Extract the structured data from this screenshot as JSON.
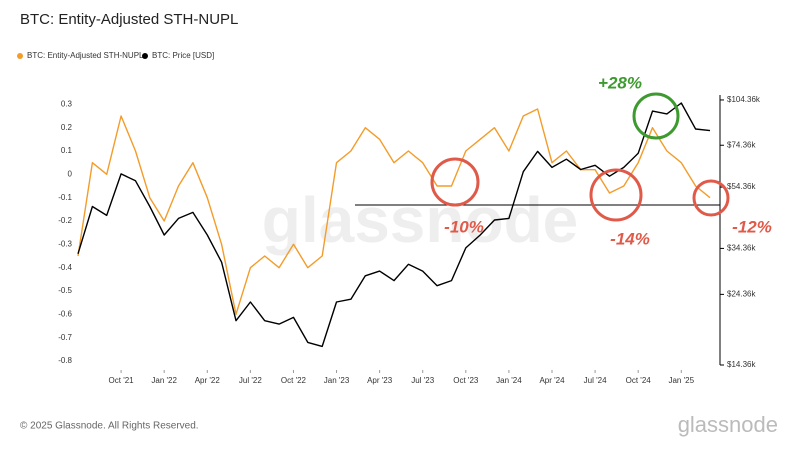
{
  "chart_data": {
    "type": "line",
    "title": "BTC: Entity-Adjusted STH-NUPL",
    "watermark": "glassnode",
    "x": [
      "2021-07",
      "2021-08",
      "2021-09",
      "2021-10",
      "2021-11",
      "2021-12",
      "2022-01",
      "2022-02",
      "2022-03",
      "2022-04",
      "2022-05",
      "2022-06",
      "2022-07",
      "2022-08",
      "2022-09",
      "2022-10",
      "2022-11",
      "2022-12",
      "2023-01",
      "2023-02",
      "2023-03",
      "2023-04",
      "2023-05",
      "2023-06",
      "2023-07",
      "2023-08",
      "2023-09",
      "2023-10",
      "2023-11",
      "2023-12",
      "2024-01",
      "2024-02",
      "2024-03",
      "2024-04",
      "2024-05",
      "2024-06",
      "2024-07",
      "2024-08",
      "2024-09",
      "2024-10",
      "2024-11",
      "2024-12",
      "2025-01",
      "2025-02",
      "2025-03"
    ],
    "series": [
      {
        "name": "BTC: Entity-Adjusted STH-NUPL",
        "color": "#f39c2a",
        "values": [
          -0.35,
          0.05,
          0,
          0.25,
          0.1,
          -0.1,
          -0.2,
          -0.05,
          0.05,
          -0.1,
          -0.3,
          -0.6,
          -0.4,
          -0.35,
          -0.4,
          -0.3,
          -0.4,
          -0.35,
          0.05,
          0.1,
          0.2,
          0.15,
          0.05,
          0.1,
          0.05,
          -0.05,
          -0.05,
          0.1,
          0.15,
          0.2,
          0.1,
          0.25,
          0.28,
          0.05,
          0.1,
          0.02,
          0.02,
          -0.08,
          -0.05,
          0.05,
          0.2,
          0.1,
          0.05,
          -0.05,
          -0.1
        ]
      },
      {
        "name": "BTC: Price [USD]",
        "color": "#000000",
        "axis": "y2",
        "values": [
          33000,
          47000,
          44000,
          60000,
          57000,
          47000,
          38000,
          43000,
          45000,
          38000,
          31000,
          20000,
          23000,
          20000,
          19500,
          20500,
          17000,
          16500,
          23000,
          23500,
          28000,
          29000,
          27000,
          30500,
          29000,
          26000,
          27000,
          34500,
          38000,
          42500,
          43000,
          61000,
          71000,
          63000,
          67000,
          62000,
          64000,
          59000,
          63000,
          70000,
          96000,
          94000,
          102000,
          84000,
          83000
        ]
      }
    ],
    "xlim": [
      "2021-07",
      "2025-03"
    ],
    "xticks": [
      {
        "value": "2021-10",
        "label": "Oct '21"
      },
      {
        "value": "2022-01",
        "label": "Jan '22"
      },
      {
        "value": "2022-04",
        "label": "Apr '22"
      },
      {
        "value": "2022-07",
        "label": "Jul '22"
      },
      {
        "value": "2022-10",
        "label": "Oct '22"
      },
      {
        "value": "2023-01",
        "label": "Jan '23"
      },
      {
        "value": "2023-04",
        "label": "Apr '23"
      },
      {
        "value": "2023-07",
        "label": "Jul '23"
      },
      {
        "value": "2023-10",
        "label": "Oct '23"
      },
      {
        "value": "2024-01",
        "label": "Jan '24"
      },
      {
        "value": "2024-04",
        "label": "Apr '24"
      },
      {
        "value": "2024-07",
        "label": "Jul '24"
      },
      {
        "value": "2024-10",
        "label": "Oct '24"
      },
      {
        "value": "2025-01",
        "label": "Jan '25"
      }
    ],
    "ylim": [
      -0.83,
      0.34
    ],
    "yticks": [
      0.3,
      0.2,
      0.1,
      0,
      -0.1,
      -0.2,
      -0.3,
      -0.4,
      -0.5,
      -0.6,
      -0.7,
      -0.8
    ],
    "y2lim": [
      14040,
      108300
    ],
    "y2log": true,
    "y2ticks": [
      {
        "value": 104360,
        "label": "$104.36k"
      },
      {
        "value": 74360,
        "label": "$74.36k"
      },
      {
        "value": 54360,
        "label": "$54.36k"
      },
      {
        "value": 34360,
        "label": "$34.36k"
      },
      {
        "value": 24360,
        "label": "$24.36k"
      },
      {
        "value": 14360,
        "label": "$14.36k"
      }
    ],
    "annotations": [
      "+28%",
      "-10%",
      "-14%",
      "-12%"
    ]
  },
  "footer": {
    "copyright": "© 2025 Glassnode. All Rights Reserved.",
    "logo": "glassnode"
  }
}
